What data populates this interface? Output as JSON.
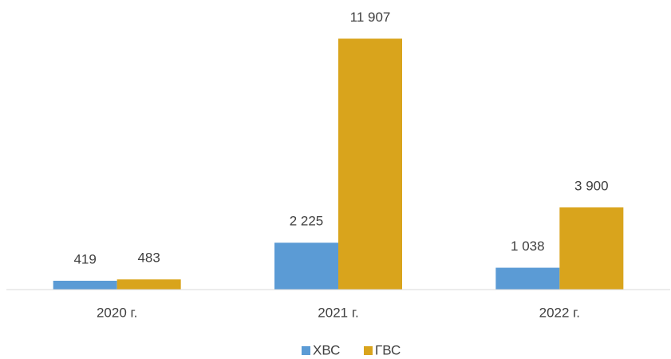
{
  "chart_data": {
    "type": "bar",
    "categories": [
      "2020 г.",
      "2021 г.",
      "2022 г."
    ],
    "series": [
      {
        "name": "ХВС",
        "color": "#5b9bd5",
        "values": [
          419,
          2225,
          1038
        ],
        "value_labels": [
          "419",
          "2 225",
          "1 038"
        ]
      },
      {
        "name": "ГВС",
        "color": "#d9a41c",
        "values": [
          483,
          11907,
          3900
        ],
        "value_labels": [
          "483",
          "11 907",
          "3 900"
        ]
      }
    ],
    "ylim": [
      0,
      12000
    ],
    "legend": "bottom"
  }
}
